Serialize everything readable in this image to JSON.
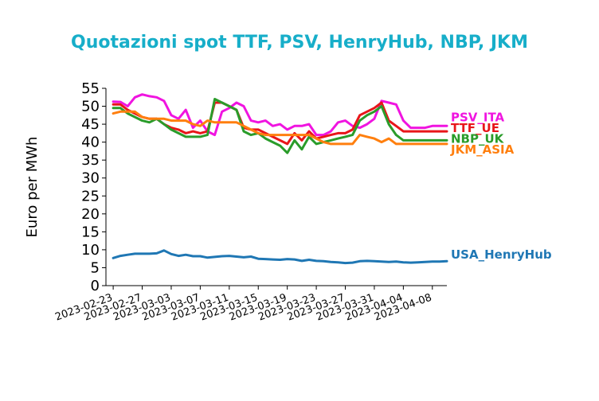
{
  "chart_data": {
    "type": "line",
    "title": "Quotazioni spot TTF, PSV, HenryHub, NBP, JKM",
    "ylabel": "Euro per MWh",
    "xlabel": "",
    "ylim": [
      0,
      55
    ],
    "yticks": [
      "0",
      "5",
      "10",
      "15",
      "20",
      "25",
      "30",
      "35",
      "40",
      "45",
      "50",
      "55"
    ],
    "xticks": [
      "2023-02-23",
      "2023-02-27",
      "2023-03-03",
      "2023-03-07",
      "2023-03-11",
      "2023-03-15",
      "2023-03-19",
      "2023-03-23",
      "2023-03-27",
      "2023-03-31",
      "2023-04-04",
      "2023-04-08"
    ],
    "x": [
      "2023-02-23",
      "2023-02-24",
      "2023-02-25",
      "2023-02-26",
      "2023-02-27",
      "2023-02-28",
      "2023-03-01",
      "2023-03-02",
      "2023-03-03",
      "2023-03-04",
      "2023-03-05",
      "2023-03-06",
      "2023-03-07",
      "2023-03-08",
      "2023-03-09",
      "2023-03-10",
      "2023-03-11",
      "2023-03-12",
      "2023-03-13",
      "2023-03-14",
      "2023-03-15",
      "2023-03-16",
      "2023-03-17",
      "2023-03-18",
      "2023-03-19",
      "2023-03-20",
      "2023-03-21",
      "2023-03-22",
      "2023-03-23",
      "2023-03-24",
      "2023-03-25",
      "2023-03-26",
      "2023-03-27",
      "2023-03-28",
      "2023-03-29",
      "2023-03-30",
      "2023-03-31",
      "2023-04-01",
      "2023-04-02",
      "2023-04-03",
      "2023-04-04",
      "2023-04-05",
      "2023-04-06",
      "2023-04-07",
      "2023-04-08",
      "2023-04-09",
      "2023-04-10"
    ],
    "series": [
      {
        "name": "PSV_ITA",
        "color": "#f014e0",
        "label_value": 45.8,
        "values": [
          51.3,
          51.2,
          50.0,
          52.5,
          53.3,
          52.8,
          52.5,
          51.5,
          47.5,
          46.5,
          49.0,
          44.0,
          46.0,
          43.0,
          42.0,
          48.5,
          49.5,
          51.0,
          50.0,
          46.0,
          45.5,
          46.0,
          44.5,
          45.0,
          43.5,
          44.5,
          44.5,
          45.0,
          42.0,
          42.0,
          43.0,
          45.5,
          46.0,
          44.5,
          44.0,
          45.0,
          46.5,
          51.5,
          51.0,
          50.5,
          46.0,
          44.0,
          44.0,
          44.0,
          44.5,
          44.5,
          44.5
        ]
      },
      {
        "name": "TTF_UE",
        "color": "#e8161a",
        "label_value": 42.8,
        "values": [
          50.5,
          50.5,
          49.0,
          48.0,
          47.0,
          46.5,
          46.5,
          45.0,
          44.0,
          43.5,
          42.5,
          43.0,
          42.5,
          43.0,
          51.0,
          51.0,
          50.0,
          49.0,
          44.0,
          43.5,
          43.5,
          42.5,
          41.5,
          40.5,
          39.5,
          42.5,
          40.5,
          43.0,
          41.0,
          41.5,
          42.0,
          42.5,
          42.5,
          43.5,
          47.5,
          48.5,
          49.5,
          51.0,
          46.0,
          44.5,
          43.0,
          43.0,
          43.0,
          43.0,
          43.0,
          43.0,
          43.0
        ]
      },
      {
        "name": "NBP_UK",
        "color": "#2a9c2a",
        "label_value": 39.8,
        "values": [
          49.5,
          49.5,
          48.0,
          47.0,
          46.0,
          45.5,
          46.5,
          45.0,
          43.5,
          42.5,
          41.5,
          41.5,
          41.5,
          42.0,
          52.0,
          51.0,
          50.0,
          49.0,
          43.0,
          42.0,
          42.5,
          41.0,
          40.0,
          39.0,
          37.0,
          40.5,
          38.0,
          41.5,
          39.5,
          40.0,
          40.5,
          41.0,
          41.5,
          42.0,
          46.0,
          47.5,
          48.5,
          50.0,
          45.0,
          42.0,
          40.5,
          40.5,
          40.5,
          40.5,
          40.5,
          40.5,
          40.5
        ]
      },
      {
        "name": "JKM_ASIA",
        "color": "#ff7f0e",
        "label_value": 36.8,
        "values": [
          48.0,
          48.5,
          48.5,
          48.5,
          47.0,
          46.5,
          46.5,
          46.5,
          46.0,
          46.0,
          46.0,
          45.0,
          44.5,
          46.0,
          45.5,
          45.5,
          45.5,
          45.5,
          44.5,
          43.5,
          42.5,
          42.0,
          42.0,
          42.0,
          42.0,
          42.0,
          42.0,
          42.0,
          41.0,
          40.0,
          39.5,
          39.5,
          39.5,
          39.5,
          42.0,
          41.5,
          41.0,
          40.0,
          41.0,
          39.5,
          39.5,
          39.5,
          39.5,
          39.5,
          39.5,
          39.5,
          39.5
        ]
      },
      {
        "name": "USA_HenryHub",
        "color": "#1f77b4",
        "label_value": 7.5,
        "values": [
          7.7,
          8.3,
          8.6,
          8.9,
          8.9,
          8.9,
          9.0,
          9.8,
          8.8,
          8.3,
          8.6,
          8.2,
          8.2,
          7.8,
          8.0,
          8.2,
          8.3,
          8.1,
          7.9,
          8.1,
          7.5,
          7.4,
          7.3,
          7.2,
          7.4,
          7.3,
          6.9,
          7.2,
          6.9,
          6.8,
          6.6,
          6.5,
          6.3,
          6.4,
          6.8,
          6.9,
          6.8,
          6.7,
          6.6,
          6.7,
          6.5,
          6.4,
          6.5,
          6.6,
          6.7,
          6.7,
          6.8
        ]
      }
    ],
    "legend": "right-of-lines",
    "grid": false
  }
}
